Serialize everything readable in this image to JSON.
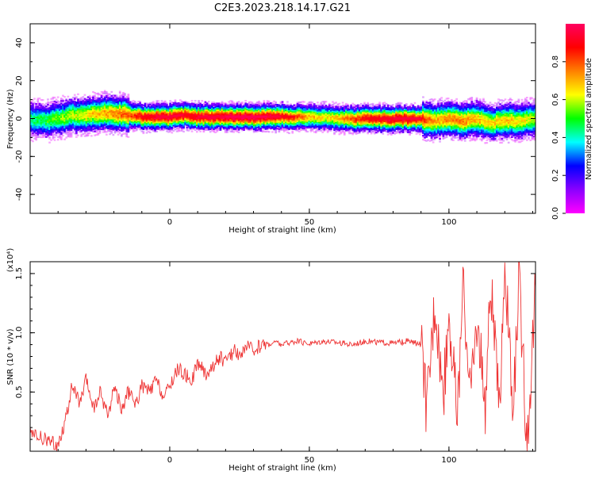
{
  "title": "C2E3.2023.218.14.17.G21",
  "chart_data": [
    {
      "type": "heatmap",
      "xlabel": "Height of straight line (km)",
      "ylabel": "Frequency (Hz)",
      "xlim": [
        -50,
        131
      ],
      "ylim": [
        -50,
        50
      ],
      "xticks": [
        0,
        50,
        100
      ],
      "yticks": [
        -40,
        -20,
        0,
        20,
        40
      ],
      "colorbar": {
        "label": "Normalized spectral amplitude",
        "range": [
          0.0,
          1.0
        ],
        "ticks": [
          "0.0",
          "0.2",
          "0.4",
          "0.6",
          "0.8"
        ],
        "colors": [
          "#ff00ff",
          "#8a00ff",
          "#0000ff",
          "#00ffff",
          "#00ff00",
          "#ffff00",
          "#ff8000",
          "#ff0000",
          "#ff0060"
        ]
      },
      "ridge": {
        "height_km": [
          -50,
          -45,
          -40,
          -35,
          -30,
          -25,
          -20,
          -15,
          -10,
          -5,
          0,
          5,
          10,
          15,
          20,
          25,
          30,
          35,
          40,
          45,
          50,
          55,
          60,
          65,
          70,
          75,
          80,
          85,
          90,
          95,
          100,
          105,
          110,
          115,
          120,
          125,
          131
        ],
        "frequency_hz": [
          0,
          -1,
          0,
          2,
          2,
          3,
          3,
          2,
          1,
          1,
          1,
          2,
          1,
          1,
          1,
          1,
          1,
          1,
          1,
          1,
          1,
          1,
          0,
          0,
          0,
          0,
          0,
          0,
          0,
          -1,
          0,
          -1,
          0,
          -2,
          -1,
          -1,
          0
        ],
        "peak_amplitude": [
          0.45,
          0.5,
          0.55,
          0.6,
          0.65,
          0.7,
          0.75,
          0.8,
          0.9,
          0.95,
          0.95,
          0.9,
          0.95,
          0.95,
          0.98,
          0.98,
          0.98,
          0.95,
          0.9,
          0.8,
          0.7,
          0.65,
          0.7,
          0.8,
          0.9,
          0.92,
          0.95,
          0.95,
          0.85,
          0.7,
          0.75,
          0.75,
          0.7,
          0.65,
          0.7,
          0.65,
          0.6
        ]
      }
    },
    {
      "type": "line",
      "xlabel": "Height of straight line (km)",
      "ylabel": "SNR (10 * v/v)",
      "y_multiplier": "(x10⁴)",
      "xlim": [
        -50,
        131
      ],
      "ylim": [
        0,
        1.6
      ],
      "xticks": [
        0,
        50,
        100
      ],
      "yticks": [
        "0.5",
        "1.0",
        "1.5"
      ],
      "series": [
        {
          "color": "#ee3333",
          "x": [
            -50,
            -45,
            -40,
            -37,
            -35,
            -32,
            -30,
            -27,
            -25,
            -22,
            -20,
            -17,
            -15,
            -12,
            -10,
            -7,
            -5,
            -2,
            0,
            3,
            5,
            8,
            10,
            13,
            15,
            18,
            20,
            23,
            25,
            28,
            30,
            33,
            35,
            38,
            40,
            45,
            50,
            55,
            60,
            65,
            70,
            75,
            80,
            85,
            90,
            92,
            95,
            98,
            100,
            103,
            105,
            108,
            110,
            113,
            115,
            118,
            120,
            123,
            125,
            128,
            131
          ],
          "y": [
            0.15,
            0.1,
            0.05,
            0.3,
            0.55,
            0.4,
            0.6,
            0.35,
            0.5,
            0.3,
            0.55,
            0.35,
            0.5,
            0.4,
            0.55,
            0.5,
            0.6,
            0.45,
            0.55,
            0.7,
            0.65,
            0.6,
            0.75,
            0.65,
            0.7,
            0.8,
            0.75,
            0.85,
            0.82,
            0.88,
            0.85,
            0.9,
            0.9,
            0.92,
            0.9,
            0.93,
            0.91,
            0.93,
            0.92,
            0.9,
            0.93,
            0.92,
            0.91,
            0.93,
            0.9,
            0.35,
            1.3,
            0.45,
            1.2,
            0.3,
            1.35,
            0.5,
            1.1,
            0.4,
            1.45,
            0.3,
            1.6,
            0.25,
            1.5,
            0.05,
            1.4
          ]
        }
      ]
    }
  ]
}
